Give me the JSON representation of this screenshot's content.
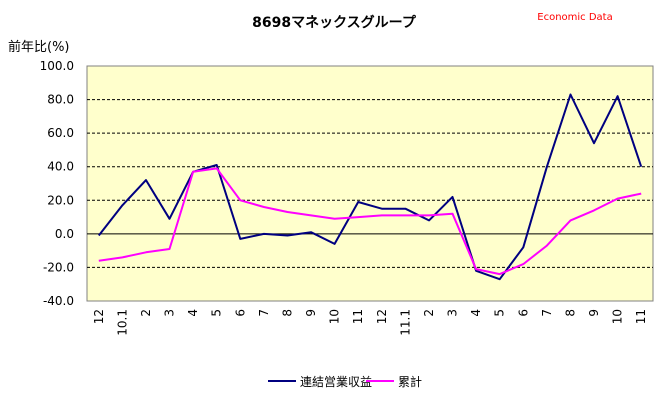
{
  "chart_data": {
    "type": "line",
    "title": "8698マネックスグループ",
    "brand": "Economic Data",
    "ylabel": "前年比(%)",
    "xlabel": "",
    "ylim": [
      -40,
      100
    ],
    "yticks": [
      "100.0",
      "80.0",
      "60.0",
      "40.0",
      "20.0",
      "0.0",
      "-20.0",
      "-40.0"
    ],
    "categories": [
      "12",
      "10.1",
      "2",
      "3",
      "4",
      "5",
      "6",
      "7",
      "8",
      "9",
      "10",
      "11",
      "12",
      "11.1",
      "2",
      "3",
      "4",
      "5",
      "6",
      "7",
      "8",
      "9",
      "10",
      "11"
    ],
    "grid": "horizontal-dashed",
    "legend_position": "bottom",
    "plot_background": "#ffffcc",
    "series": [
      {
        "name": "連結営業収益",
        "color": "#000080",
        "values": [
          -1,
          17,
          32,
          9,
          37,
          41,
          -3,
          0,
          -1,
          1,
          -6,
          19,
          15,
          15,
          8,
          22,
          -22,
          -27,
          -8,
          40,
          83,
          54,
          82,
          40
        ]
      },
      {
        "name": "累計",
        "color": "#ff00ff",
        "values": [
          -16,
          -14,
          -11,
          -9,
          37,
          39,
          20,
          16,
          13,
          11,
          9,
          10,
          11,
          11,
          11,
          12,
          -21,
          -24,
          -18,
          -7,
          8,
          14,
          21,
          24
        ]
      }
    ]
  }
}
